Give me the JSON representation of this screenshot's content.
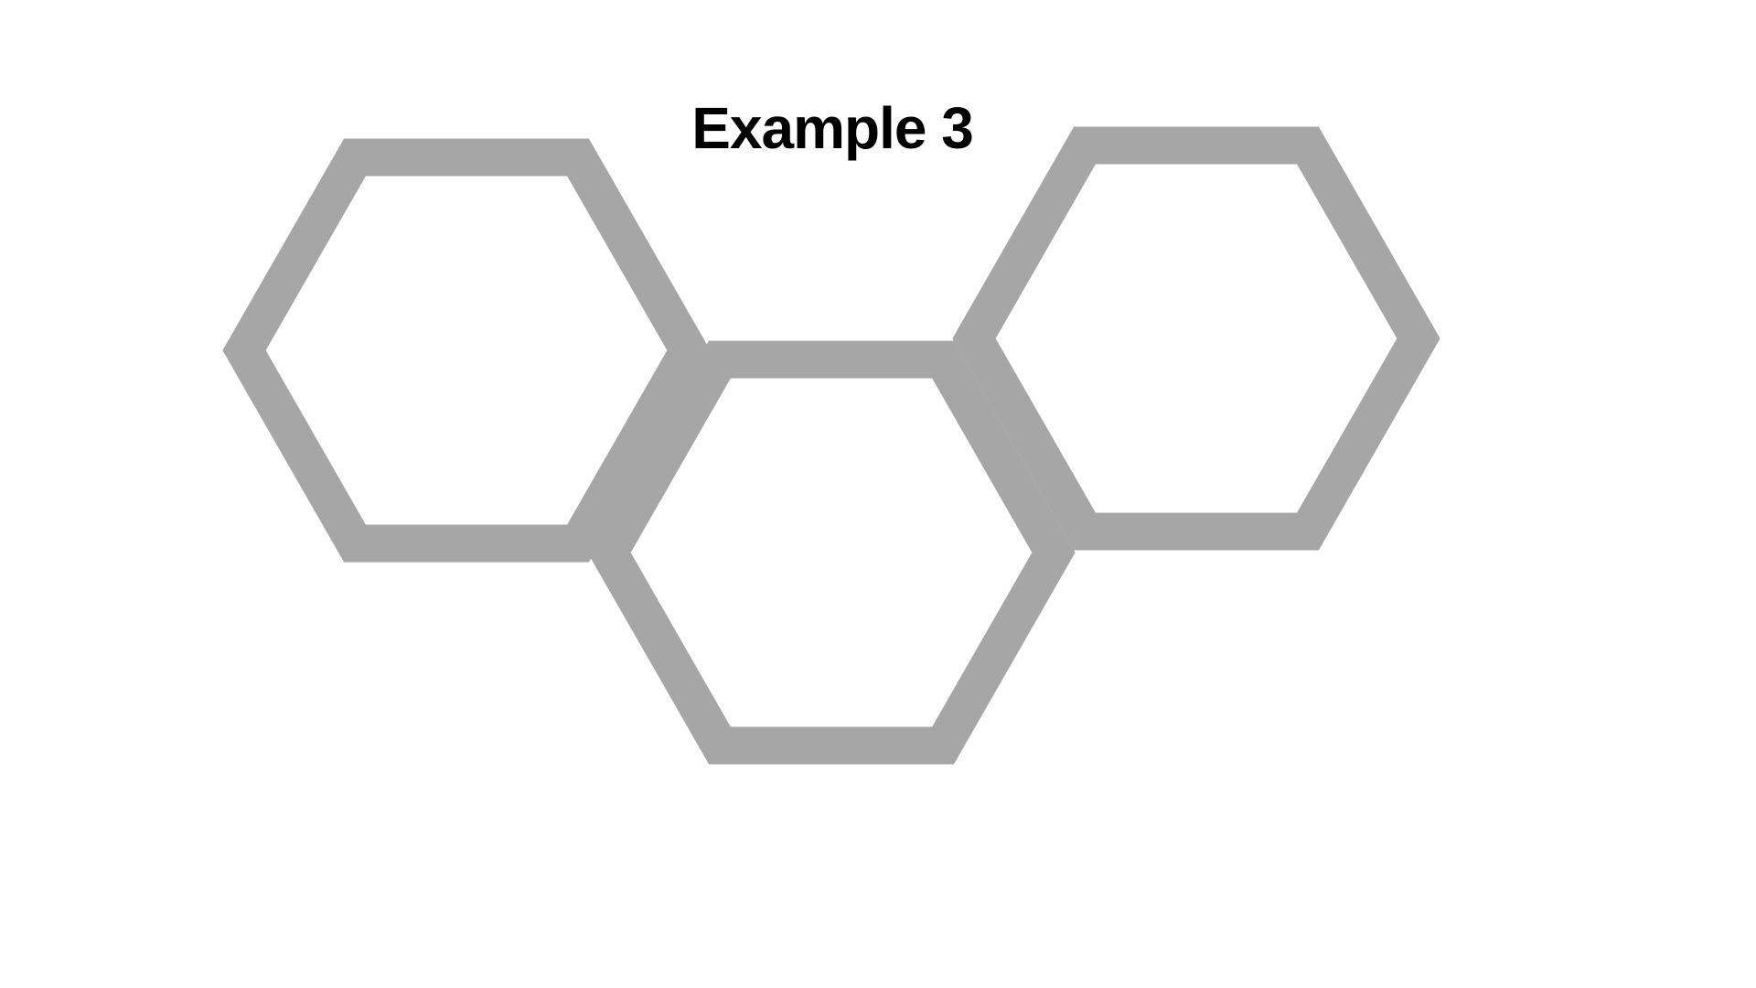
{
  "slide": {
    "title": "Example 3"
  },
  "diagram": {
    "shape": "hexagon",
    "count": 3,
    "stroke_color": "#a6a6a6",
    "fill_color": "#ffffff",
    "hexagons": [
      {
        "name": "hexagon-left"
      },
      {
        "name": "hexagon-center"
      },
      {
        "name": "hexagon-right"
      }
    ]
  }
}
